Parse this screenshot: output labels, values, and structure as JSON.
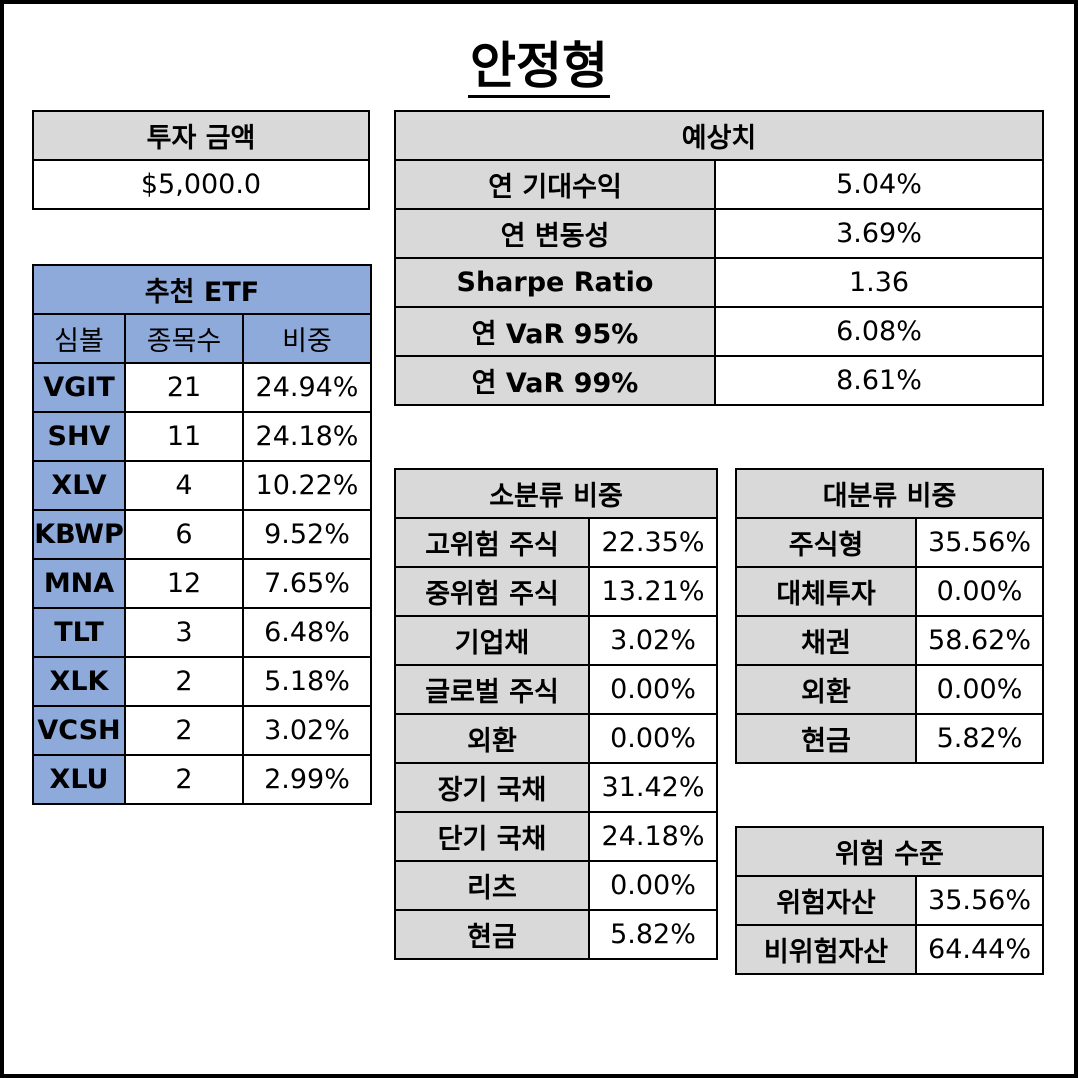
{
  "title": "안정형",
  "investment": {
    "header": "투자 금액",
    "amount": "$5,000.0"
  },
  "etf": {
    "header": "추천 ETF",
    "columns": [
      "심볼",
      "종목수",
      "비중"
    ],
    "rows": [
      {
        "symbol": "VGIT",
        "count": "21",
        "weight": "24.94%"
      },
      {
        "symbol": "SHV",
        "count": "11",
        "weight": "24.18%"
      },
      {
        "symbol": "XLV",
        "count": "4",
        "weight": "10.22%"
      },
      {
        "symbol": "KBWP",
        "count": "6",
        "weight": "9.52%"
      },
      {
        "symbol": "MNA",
        "count": "12",
        "weight": "7.65%"
      },
      {
        "symbol": "TLT",
        "count": "3",
        "weight": "6.48%"
      },
      {
        "symbol": "XLK",
        "count": "2",
        "weight": "5.18%"
      },
      {
        "symbol": "VCSH",
        "count": "2",
        "weight": "3.02%"
      },
      {
        "symbol": "XLU",
        "count": "2",
        "weight": "2.99%"
      }
    ]
  },
  "forecast": {
    "header": "예상치",
    "rows": [
      {
        "label": "연 기대수익",
        "value": "5.04%"
      },
      {
        "label": "연 변동성",
        "value": "3.69%"
      },
      {
        "label": "Sharpe Ratio",
        "value": "1.36"
      },
      {
        "label": "연 VaR 95%",
        "value": "6.08%"
      },
      {
        "label": "연 VaR 99%",
        "value": "8.61%"
      }
    ]
  },
  "sub_category": {
    "header": "소분류 비중",
    "rows": [
      {
        "label": "고위험 주식",
        "value": "22.35%"
      },
      {
        "label": "중위험 주식",
        "value": "13.21%"
      },
      {
        "label": "기업채",
        "value": "3.02%"
      },
      {
        "label": "글로벌 주식",
        "value": "0.00%"
      },
      {
        "label": "외환",
        "value": "0.00%"
      },
      {
        "label": "장기 국채",
        "value": "31.42%"
      },
      {
        "label": "단기 국채",
        "value": "24.18%"
      },
      {
        "label": "리츠",
        "value": "0.00%"
      },
      {
        "label": "현금",
        "value": "5.82%"
      }
    ]
  },
  "main_category": {
    "header": "대분류 비중",
    "rows": [
      {
        "label": "주식형",
        "value": "35.56%"
      },
      {
        "label": "대체투자",
        "value": "0.00%"
      },
      {
        "label": "채권",
        "value": "58.62%"
      },
      {
        "label": "외환",
        "value": "0.00%"
      },
      {
        "label": "현금",
        "value": "5.82%"
      }
    ]
  },
  "risk_level": {
    "header": "위험 수준",
    "rows": [
      {
        "label": "위험자산",
        "value": "35.56%"
      },
      {
        "label": "비위험자산",
        "value": "64.44%"
      }
    ]
  },
  "colors": {
    "header_gray": "#d9d9d9",
    "etf_blue": "#8eaadb",
    "border": "#000000"
  }
}
